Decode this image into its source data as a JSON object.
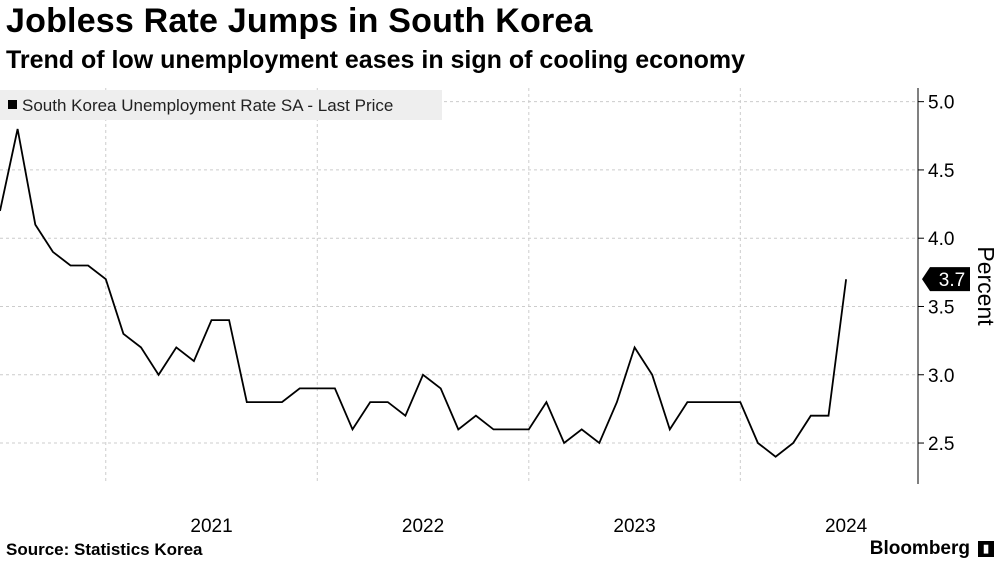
{
  "header": {
    "title": "Jobless Rate Jumps in South Korea",
    "subtitle": "Trend of low unemployment eases in sign of cooling economy"
  },
  "footer": {
    "source": "Source:  Statistics Korea",
    "brand": "Bloomberg",
    "brand_icon": "bloomberg-terminal-icon"
  },
  "colors": {
    "line": "#000000",
    "grid": "#cccccc",
    "legend_bg": "#eeeeee"
  },
  "chart_data": {
    "type": "line",
    "title": "Jobless Rate Jumps in South Korea",
    "subtitle": "Trend of low unemployment eases in sign of cooling economy",
    "ylabel": "Percent",
    "xlabel": "",
    "ylim": [
      2.2,
      5.1
    ],
    "yticks": [
      2.5,
      3.0,
      3.5,
      4.0,
      4.5,
      5.0
    ],
    "ytick_labels": [
      "2.5",
      "3.0",
      "3.5",
      "4.0",
      "4.5",
      "5.0"
    ],
    "xlim": [
      2020.5,
      2024.84
    ],
    "xtick_labels": [
      "2021",
      "2022",
      "2023",
      "2024"
    ],
    "legend": "South Korea Unemployment Rate SA - Last Price",
    "last_value_label": "3.7",
    "grid": true,
    "series": [
      {
        "name": "South Korea Unemployment Rate SA - Last Price",
        "start": "2020-07",
        "values": [
          4.2,
          4.8,
          4.1,
          3.9,
          3.8,
          3.8,
          3.7,
          3.3,
          3.2,
          3.0,
          3.2,
          3.1,
          3.4,
          3.4,
          2.8,
          2.8,
          2.8,
          2.9,
          2.9,
          2.9,
          2.6,
          2.8,
          2.8,
          2.7,
          3.0,
          2.9,
          2.6,
          2.7,
          2.6,
          2.6,
          2.6,
          2.8,
          2.5,
          2.6,
          2.5,
          2.8,
          3.2,
          3.0,
          2.6,
          2.8,
          2.8,
          2.8,
          2.8,
          2.5,
          2.4,
          2.5,
          2.7,
          2.7,
          3.7
        ]
      }
    ]
  }
}
